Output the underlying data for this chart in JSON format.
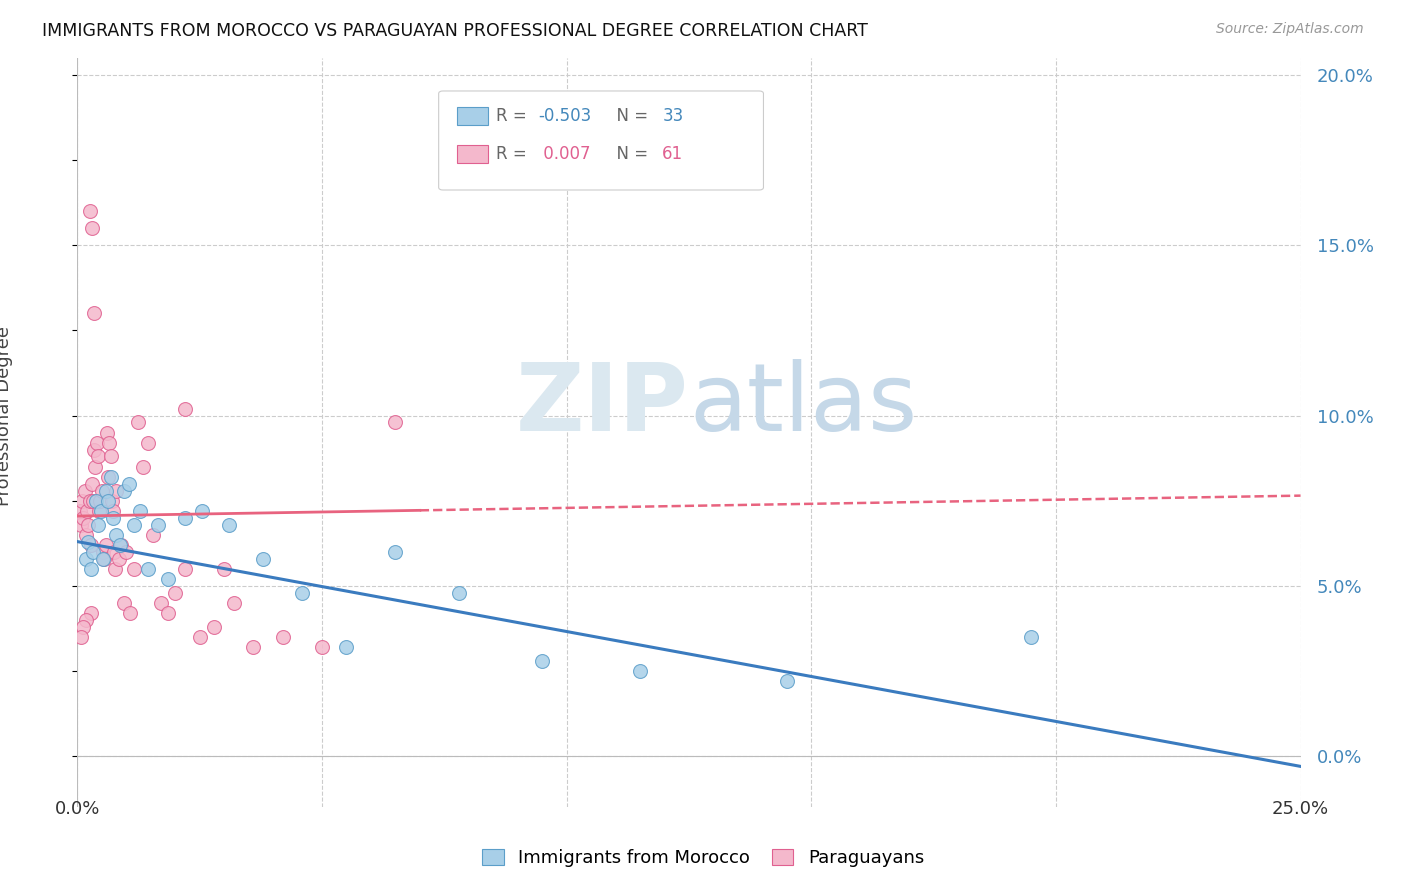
{
  "title": "IMMIGRANTS FROM MOROCCO VS PARAGUAYAN PROFESSIONAL DEGREE CORRELATION CHART",
  "source": "Source: ZipAtlas.com",
  "ylabel": "Professional Degree",
  "xmin": 0.0,
  "xmax": 25.0,
  "ymin": 0.0,
  "ymax": 20.0,
  "R_blue": -0.503,
  "N_blue": 33,
  "R_pink": 0.007,
  "N_pink": 61,
  "blue_color": "#a8cfe8",
  "blue_edge_color": "#5b9ec9",
  "pink_color": "#f4b8cc",
  "pink_edge_color": "#e06090",
  "blue_line_color": "#3a7bbf",
  "pink_line_color": "#e8637f",
  "y_grid_ticks": [
    0.0,
    5.0,
    10.0,
    15.0,
    20.0
  ],
  "x_grid_ticks": [
    0.0,
    5.0,
    10.0,
    15.0,
    20.0,
    25.0
  ],
  "blue_x": [
    0.18,
    0.22,
    0.28,
    0.32,
    0.38,
    0.42,
    0.48,
    0.52,
    0.58,
    0.62,
    0.68,
    0.72,
    0.8,
    0.88,
    0.95,
    1.05,
    1.15,
    1.28,
    1.45,
    1.65,
    1.85,
    2.2,
    2.55,
    3.1,
    3.8,
    4.6,
    5.5,
    6.5,
    7.8,
    9.5,
    11.5,
    14.5,
    19.5
  ],
  "blue_y": [
    5.8,
    6.3,
    5.5,
    6.0,
    7.5,
    6.8,
    7.2,
    5.8,
    7.8,
    7.5,
    8.2,
    7.0,
    6.5,
    6.2,
    7.8,
    8.0,
    6.8,
    7.2,
    5.5,
    6.8,
    5.2,
    7.0,
    7.2,
    6.8,
    5.8,
    4.8,
    3.2,
    6.0,
    4.8,
    2.8,
    2.5,
    2.2,
    3.5
  ],
  "pink_x": [
    0.05,
    0.08,
    0.1,
    0.12,
    0.15,
    0.17,
    0.2,
    0.22,
    0.25,
    0.27,
    0.3,
    0.32,
    0.35,
    0.37,
    0.4,
    0.42,
    0.45,
    0.47,
    0.5,
    0.53,
    0.55,
    0.58,
    0.6,
    0.63,
    0.65,
    0.68,
    0.7,
    0.73,
    0.75,
    0.78,
    0.8,
    0.85,
    0.9,
    0.95,
    1.0,
    1.08,
    1.15,
    1.25,
    1.35,
    1.45,
    1.55,
    1.7,
    1.85,
    2.0,
    2.2,
    2.5,
    2.8,
    3.2,
    3.6,
    4.2,
    5.0,
    0.25,
    0.3,
    0.35,
    2.2,
    3.0,
    6.5,
    0.28,
    0.18,
    0.12,
    0.08
  ],
  "pink_y": [
    7.2,
    6.8,
    7.5,
    7.0,
    7.8,
    6.5,
    7.2,
    6.8,
    7.5,
    6.2,
    8.0,
    7.5,
    9.0,
    8.5,
    9.2,
    8.8,
    7.2,
    7.5,
    7.8,
    6.0,
    5.8,
    6.2,
    9.5,
    8.2,
    9.2,
    8.8,
    7.5,
    7.2,
    6.0,
    5.5,
    7.8,
    5.8,
    6.2,
    4.5,
    6.0,
    4.2,
    5.5,
    9.8,
    8.5,
    9.2,
    6.5,
    4.5,
    4.2,
    4.8,
    5.5,
    3.5,
    3.8,
    4.5,
    3.2,
    3.5,
    3.2,
    16.0,
    15.5,
    13.0,
    10.2,
    5.5,
    9.8,
    4.2,
    4.0,
    3.8,
    3.5
  ],
  "blue_trend_x0": 0.0,
  "blue_trend_y0": 6.3,
  "blue_trend_x1": 25.0,
  "blue_trend_y1": -0.3,
  "pink_trend_x0": 0.0,
  "pink_trend_y0": 7.05,
  "pink_trend_x1": 25.0,
  "pink_trend_y1": 7.65,
  "pink_solid_end_x": 7.0,
  "watermark_zip_color": "#dbe8f0",
  "watermark_atlas_color": "#c5d8e8"
}
